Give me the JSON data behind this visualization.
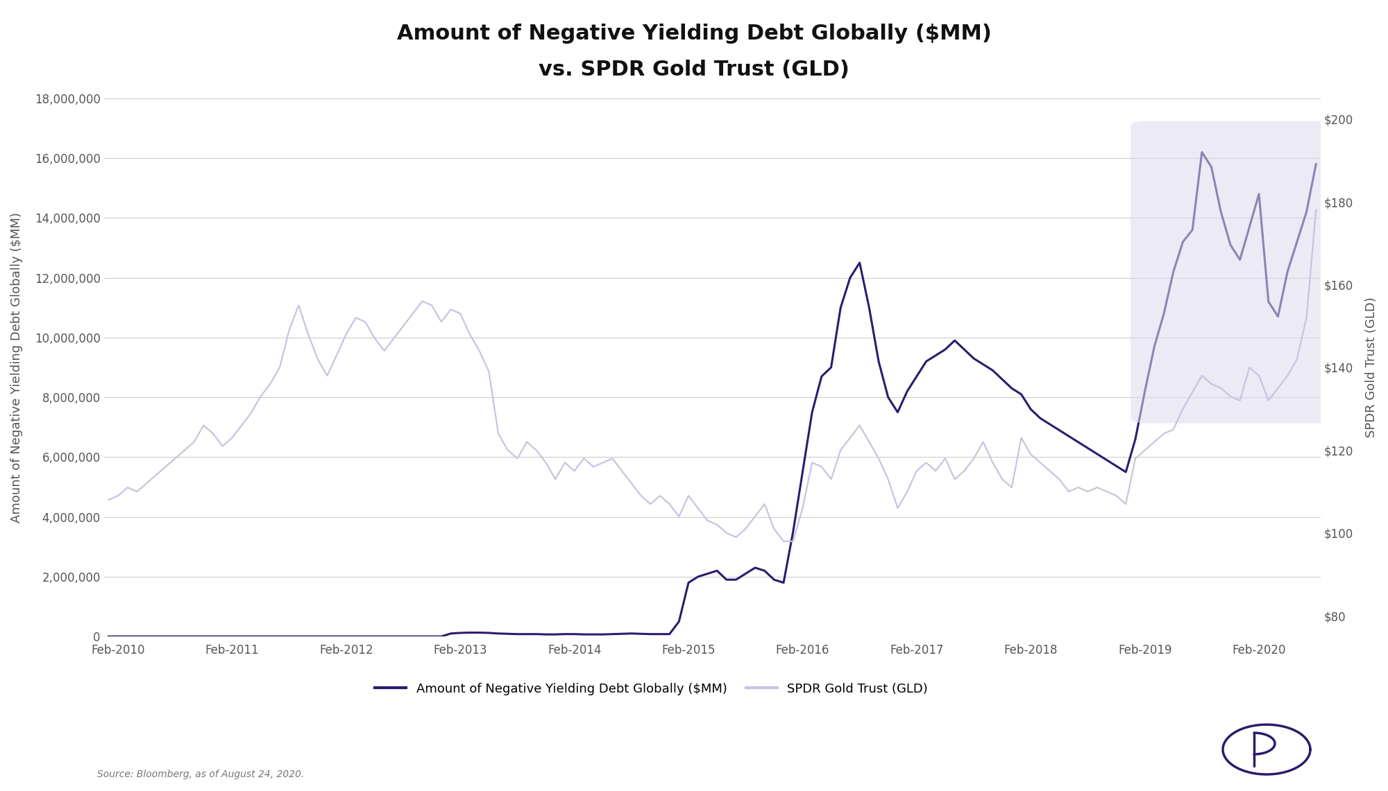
{
  "title_line1": "Amount of Negative Yielding Debt Globally ($MM)",
  "title_line2": "vs. SPDR Gold Trust (GLD)",
  "ylabel_left": "Amount of Negative Yielding Debt Globally ($MM)",
  "ylabel_right": "SPDR Gold Trust (GLD)",
  "source": "Source: Bloomberg, as of August 24, 2020.",
  "legend_label1": "Amount of Negative Yielding Debt Globally ($MM)",
  "legend_label2": "SPDR Gold Trust (GLD)",
  "color_debt": "#2e1a6e",
  "color_gld": "#c8c3df",
  "background": "#ffffff",
  "ylim_left": [
    0,
    18000000
  ],
  "ylim_right": [
    75,
    205
  ],
  "yticks_left": [
    0,
    2000000,
    4000000,
    6000000,
    8000000,
    10000000,
    12000000,
    14000000,
    16000000,
    18000000
  ],
  "yticks_right": [
    80,
    100,
    120,
    140,
    160,
    180,
    200
  ],
  "xtick_labels": [
    "Feb-2010",
    "Feb-2011",
    "Feb-2012",
    "Feb-2013",
    "Feb-2014",
    "Feb-2015",
    "Feb-2016",
    "Feb-2017",
    "Feb-2018",
    "Feb-2019",
    "Feb-2020"
  ],
  "highlight_color": "#dddaee",
  "highlight_alpha": 0.55,
  "values_gld": [
    108,
    109,
    111,
    110,
    112,
    114,
    116,
    118,
    120,
    122,
    126,
    124,
    121,
    123,
    126,
    129,
    133,
    136,
    140,
    149,
    155,
    148,
    142,
    138,
    143,
    148,
    152,
    151,
    147,
    144,
    147,
    150,
    153,
    156,
    155,
    151,
    154,
    153,
    148,
    144,
    139,
    124,
    120,
    118,
    122,
    120,
    117,
    113,
    117,
    115,
    118,
    116,
    117,
    118,
    115,
    112,
    109,
    107,
    109,
    107,
    104,
    109,
    106,
    103,
    102,
    100,
    99,
    101,
    104,
    107,
    101,
    98,
    98,
    106,
    117,
    116,
    113,
    120,
    123,
    126,
    122,
    118,
    113,
    106,
    110,
    115,
    117,
    115,
    118,
    113,
    115,
    118,
    122,
    117,
    113,
    111,
    123,
    119,
    117,
    115,
    113,
    110,
    111,
    110,
    111,
    110,
    109,
    107,
    118,
    120,
    122,
    124,
    125,
    130,
    134,
    138,
    136,
    135,
    133,
    132,
    140,
    138,
    132,
    135,
    138,
    142,
    152,
    178
  ],
  "values_debt": [
    0,
    0,
    0,
    0,
    0,
    0,
    0,
    0,
    0,
    0,
    0,
    0,
    0,
    0,
    0,
    0,
    0,
    0,
    0,
    0,
    0,
    0,
    0,
    0,
    0,
    0,
    0,
    0,
    0,
    0,
    0,
    0,
    0,
    0,
    0,
    0,
    100000,
    120000,
    130000,
    130000,
    120000,
    100000,
    90000,
    80000,
    80000,
    80000,
    70000,
    70000,
    80000,
    80000,
    70000,
    70000,
    70000,
    80000,
    90000,
    100000,
    90000,
    80000,
    80000,
    80000,
    500000,
    1800000,
    2000000,
    2100000,
    2200000,
    1900000,
    1900000,
    2100000,
    2300000,
    2200000,
    1900000,
    1800000,
    3500000,
    5500000,
    7500000,
    8700000,
    9000000,
    11000000,
    12000000,
    12500000,
    11000000,
    9200000,
    8000000,
    7500000,
    8200000,
    8700000,
    9200000,
    9400000,
    9600000,
    9900000,
    9600000,
    9300000,
    9100000,
    8900000,
    8600000,
    8300000,
    8100000,
    7600000,
    7300000,
    7100000,
    6900000,
    6700000,
    6500000,
    6300000,
    6100000,
    5900000,
    5700000,
    5500000,
    6600000,
    8200000,
    9700000,
    10800000,
    12200000,
    13200000,
    13600000,
    16200000,
    15700000,
    14200000,
    13100000,
    12600000,
    13700000,
    14800000,
    11200000,
    10700000,
    12200000,
    13200000,
    14200000,
    15800000
  ]
}
